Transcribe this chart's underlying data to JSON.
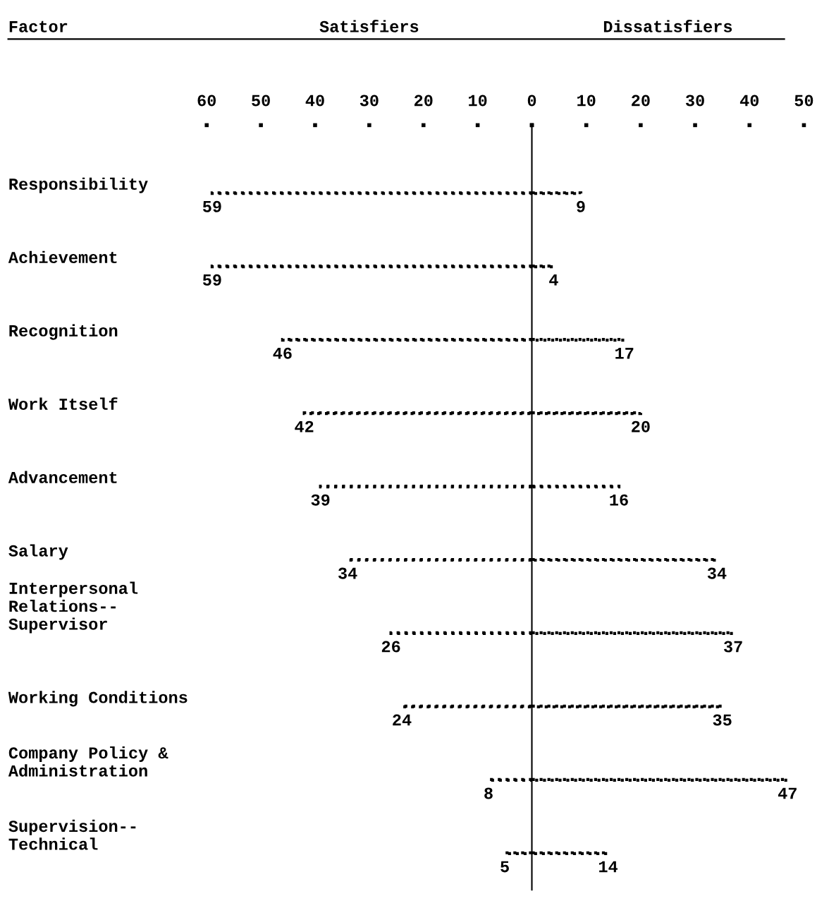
{
  "chart_data": [
    {
      "type": "bar",
      "orientation": "horizontal",
      "title": "Satisfiers",
      "ylabel": "Factor",
      "categories": [
        "Responsibility",
        "Achievement",
        "Recognition",
        "Work Itself",
        "Advancement",
        "Salary",
        "Interpersonal\nRelations--\nSupervisor",
        "Working Conditions",
        "Company Policy &\nAdministration",
        "Supervision--\nTechnical"
      ],
      "color": "#000000",
      "values": [
        59,
        59,
        46,
        42,
        39,
        34,
        26,
        24,
        8,
        5
      ],
      "data_labels": true,
      "xlim": [
        60,
        0
      ],
      "xticks": [
        60,
        50,
        40,
        30,
        20,
        10,
        {
          "value": 0,
          "label": null
        }
      ],
      "grid": false
    },
    {
      "type": "bar",
      "orientation": "horizontal",
      "title": "Dissatisfiers",
      "color": "#000000",
      "values": [
        9,
        4,
        17,
        20,
        16,
        34,
        37,
        35,
        47,
        14
      ],
      "data_labels": true,
      "xlim": [
        0,
        50
      ],
      "xticks": [
        0,
        10,
        20,
        30,
        40,
        50
      ],
      "grid": false
    }
  ]
}
